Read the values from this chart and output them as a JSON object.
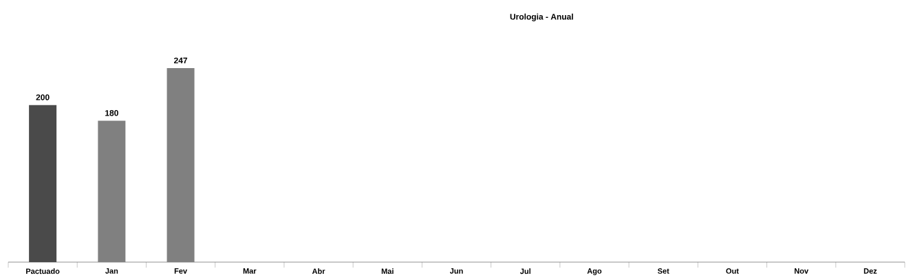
{
  "chart_data": {
    "type": "bar",
    "title": "Urologia - Anual",
    "categories": [
      "Pactuado",
      "Jan",
      "Fev",
      "Mar",
      "Abr",
      "Mai",
      "Jun",
      "Jul",
      "Ago",
      "Set",
      "Out",
      "Nov",
      "Dez"
    ],
    "values": [
      200,
      180,
      247,
      null,
      null,
      null,
      null,
      null,
      null,
      null,
      null,
      null,
      null
    ],
    "colors": [
      "#4a4a4a",
      "#808080",
      "#808080",
      "#808080",
      "#808080",
      "#808080",
      "#808080",
      "#808080",
      "#808080",
      "#808080",
      "#808080",
      "#808080",
      "#808080"
    ],
    "data_labels": true
  }
}
